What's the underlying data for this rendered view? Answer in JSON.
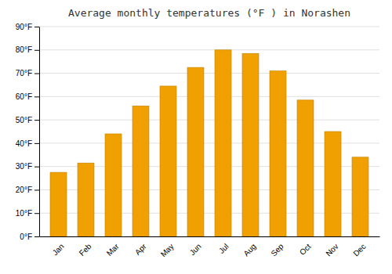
{
  "chart_data": {
    "type": "bar",
    "title": "Average monthly temperatures (°F ) in Norashen",
    "categories": [
      "Jan",
      "Feb",
      "Mar",
      "Apr",
      "May",
      "Jun",
      "Jul",
      "Aug",
      "Sep",
      "Oct",
      "Nov",
      "Dec"
    ],
    "values": [
      27.5,
      31.5,
      44.0,
      56.0,
      64.5,
      72.5,
      80.0,
      78.5,
      71.0,
      58.5,
      45.0,
      34.0
    ],
    "color": "#F0A000",
    "ylim": [
      0,
      90
    ],
    "yticks": [
      {
        "value": 0,
        "label": "0°F"
      },
      {
        "value": 10,
        "label": "10°F"
      },
      {
        "value": 20,
        "label": "20°F"
      },
      {
        "value": 30,
        "label": "30°F"
      },
      {
        "value": 40,
        "label": "40°F"
      },
      {
        "value": 50,
        "label": "50°F"
      },
      {
        "value": 60,
        "label": "60°F"
      },
      {
        "value": 70,
        "label": "70°F"
      },
      {
        "value": 80,
        "label": "80°F"
      },
      {
        "value": 90,
        "label": "90°F"
      }
    ],
    "grid": true
  }
}
